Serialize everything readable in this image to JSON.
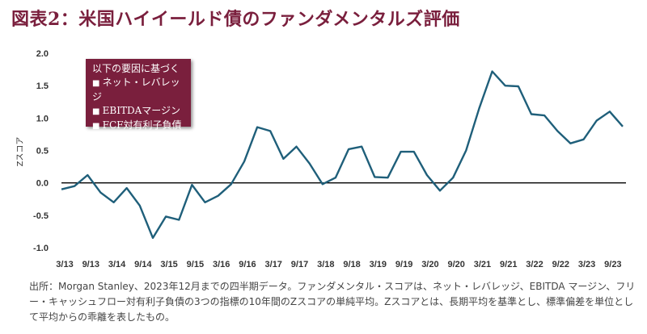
{
  "title": "図表2：米国ハイイールド債のファンダメンタルズ評価",
  "legend": {
    "heading": "以下の要因に基づく",
    "items": [
      "ネット・レバレッジ",
      "EBITDAマージン",
      "FCF対有利子負債"
    ]
  },
  "source_note": "出所：Morgan Stanley、2023年12月までの四半期データ。ファンダメンタル・スコアは、ネット・レバレッジ、EBITDA マージン、フリー・キャッシュフロー対有利子負債の3つの指標の10年間のZスコアの単純平均。Zスコアとは、長期平均を基準とし、標準偏差を単位として平均からの乖離を表したもの。",
  "colors": {
    "line": "#1f5f7a",
    "accent": "#7a1f3d",
    "zero_line": "#000000"
  },
  "chart_data": {
    "type": "line",
    "ylabel": "Zスコア",
    "xlabel": "",
    "ylim": [
      -1.0,
      2.0
    ],
    "yticks": [
      2.0,
      1.5,
      1.0,
      0.5,
      0.0,
      -0.5,
      -1.0
    ],
    "ytick_labels": [
      "2.0",
      "1.5",
      "1.0",
      "0.5",
      "0.0",
      "-0.5",
      "-1.0"
    ],
    "xtick_labels": [
      "3/13",
      "9/13",
      "3/14",
      "9/14",
      "3/15",
      "9/15",
      "3/16",
      "9/16",
      "3/17",
      "9/17",
      "3/18",
      "9/18",
      "3/19",
      "9/19",
      "3/20",
      "9/20",
      "3/21",
      "9/21",
      "3/22",
      "9/22",
      "3/23",
      "9/23"
    ],
    "series": [
      {
        "values": [
          -0.1,
          -0.05,
          0.12,
          -0.15,
          -0.3,
          -0.08,
          -0.35,
          -0.85,
          -0.52,
          -0.57,
          -0.03,
          -0.3,
          -0.2,
          -0.02,
          0.33,
          0.86,
          0.8,
          0.37,
          0.56,
          0.3,
          -0.02,
          0.08,
          0.52,
          0.56,
          0.09,
          0.08,
          0.48,
          0.48,
          0.12,
          -0.12,
          0.08,
          0.5,
          1.15,
          1.72,
          1.5,
          1.49,
          1.06,
          1.04,
          0.8,
          0.61,
          0.67,
          0.96,
          1.1,
          0.87
        ]
      }
    ]
  }
}
